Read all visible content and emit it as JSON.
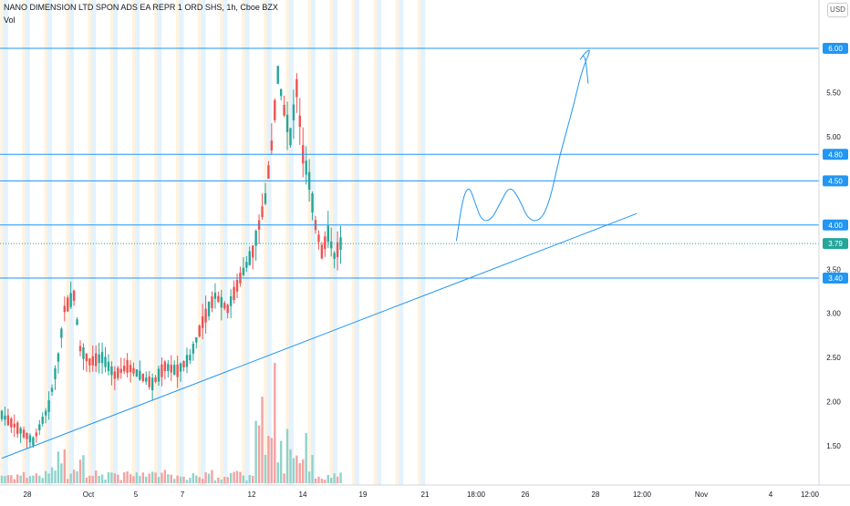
{
  "header": {
    "title": "NANO DIMENSION LTD SPON ADS EA REPR 1 ORD SHS, 1h, Cboe BZX",
    "volume_label": "Vol",
    "currency": "USD"
  },
  "colors": {
    "up": "#26a69a",
    "down": "#ef5350",
    "line": "#2196f3",
    "session_blue": "#e3f2fd",
    "session_orange": "#fff3e0",
    "price_tag": "#2196f3",
    "last_price_tag": "#26a69a"
  },
  "chart_data": {
    "type": "candlestick",
    "y_axis": {
      "min": 1.3,
      "max": 6.1,
      "ticks": [
        "1.50",
        "2.00",
        "2.50",
        "3.00",
        "3.50",
        "4.00",
        "4.50",
        "5.00",
        "5.50",
        "6.00"
      ]
    },
    "x_axis": {
      "ticks": [
        "28",
        "Oct",
        "5",
        "7",
        "12",
        "14",
        "19",
        "21",
        "18:00",
        "26",
        "28",
        "12:00",
        "Nov",
        "4",
        "12:00"
      ]
    },
    "horizontal_levels": [
      {
        "value": 6.0,
        "label": "6.00"
      },
      {
        "value": 4.8,
        "label": "4.80"
      },
      {
        "value": 4.5,
        "label": "4.50"
      },
      {
        "value": 4.0,
        "label": "4.00"
      },
      {
        "value": 3.4,
        "label": "3.40"
      }
    ],
    "last_price": {
      "value": 3.79,
      "label": "3.79"
    },
    "trendline": {
      "from": [
        0,
        1.36
      ],
      "to": [
        153,
        4.13
      ]
    },
    "key_points": [
      [
        0,
        1.85
      ],
      [
        5,
        1.7
      ],
      [
        10,
        1.55
      ],
      [
        15,
        1.95
      ],
      [
        18,
        2.5
      ],
      [
        20,
        3.05
      ],
      [
        23,
        3.2
      ],
      [
        25,
        2.6
      ],
      [
        28,
        2.45
      ],
      [
        32,
        2.5
      ],
      [
        36,
        2.3
      ],
      [
        40,
        2.4
      ],
      [
        44,
        2.3
      ],
      [
        48,
        2.2
      ],
      [
        52,
        2.4
      ],
      [
        56,
        2.35
      ],
      [
        60,
        2.5
      ],
      [
        64,
        2.9
      ],
      [
        68,
        3.2
      ],
      [
        72,
        3.05
      ],
      [
        76,
        3.4
      ],
      [
        80,
        3.7
      ],
      [
        84,
        4.3
      ],
      [
        86,
        4.9
      ],
      [
        88,
        5.7
      ],
      [
        90,
        5.3
      ],
      [
        92,
        5.0
      ],
      [
        94,
        5.55
      ],
      [
        96,
        4.8
      ],
      [
        98,
        4.5
      ],
      [
        100,
        4.0
      ],
      [
        102,
        3.7
      ],
      [
        104,
        3.9
      ],
      [
        106,
        3.65
      ],
      [
        108,
        3.79
      ]
    ],
    "projection_path": [
      [
        110,
        3.82
      ],
      [
        112,
        4.3
      ],
      [
        114,
        4.45
      ],
      [
        116,
        4.25
      ],
      [
        118,
        4.05
      ],
      [
        121,
        4.05
      ],
      [
        124,
        4.25
      ],
      [
        127,
        4.45
      ],
      [
        130,
        4.3
      ],
      [
        133,
        4.05
      ],
      [
        137,
        4.05
      ],
      [
        140,
        4.3
      ],
      [
        143,
        4.8
      ],
      [
        147,
        5.3
      ],
      [
        150,
        5.75
      ],
      [
        153,
        6.0
      ],
      [
        151,
        5.95
      ],
      [
        149,
        5.85
      ],
      [
        151,
        5.95
      ],
      [
        152,
        5.6
      ]
    ],
    "peak_volume_index": 87
  }
}
